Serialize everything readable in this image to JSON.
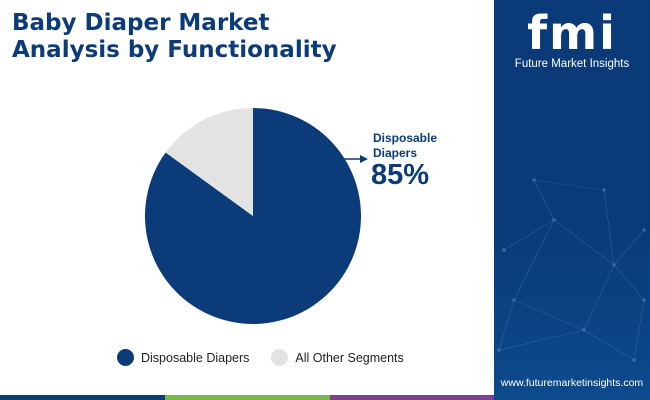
{
  "header": {
    "title_line1": "Baby Diaper Market",
    "title_line2": "Analysis by Functionality"
  },
  "colors": {
    "primary": "#0b3b78",
    "secondary": "#e3e3e3",
    "side_panel": "#0a3a78",
    "bottom_bar": [
      "#0b3b78",
      "#7ab648",
      "#7b3f98"
    ]
  },
  "chart_data": {
    "type": "pie",
    "title": "",
    "slices": [
      {
        "name": "Disposable Diapers",
        "value": 85,
        "color": "#0b3b78"
      },
      {
        "name": "All Other Segments",
        "value": 15,
        "color": "#e3e3e3"
      }
    ],
    "callout": {
      "label": "Disposable Diapers",
      "value": "85%"
    },
    "legend_position": "bottom"
  },
  "brand": {
    "logo_letters": "fmi",
    "name": "Future Market Insights",
    "website": "www.futuremarketinsights.com"
  }
}
